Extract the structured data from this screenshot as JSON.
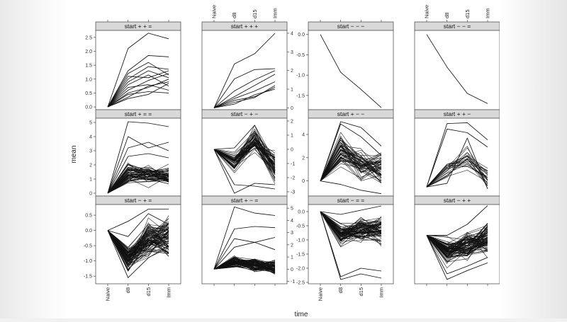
{
  "figure": {
    "xlabel": "time",
    "ylabel": "mean",
    "x_ticks": [
      "Naive",
      "d8",
      "d15",
      "Imm"
    ]
  },
  "chart_data": [
    {
      "type": "line",
      "title": "start + + =",
      "ylim": [
        -0.1,
        2.75
      ],
      "yticks": [
        0.0,
        0.5,
        1.0,
        1.5,
        2.0,
        2.5
      ],
      "x": [
        "Naive",
        "d8",
        "d15",
        "Imm"
      ],
      "series": [
        {
          "values": [
            0,
            2.1,
            2.65,
            2.45
          ]
        },
        {
          "values": [
            0,
            1.3,
            1.85,
            1.8
          ]
        },
        {
          "values": [
            0,
            1.2,
            1.6,
            1.15
          ]
        },
        {
          "values": [
            0,
            1.0,
            1.45,
            1.35
          ]
        },
        {
          "values": [
            0,
            0.9,
            1.3,
            1.05
          ]
        },
        {
          "values": [
            0,
            1.1,
            1.05,
            1.3
          ]
        },
        {
          "values": [
            0,
            0.8,
            1.15,
            0.75
          ]
        },
        {
          "values": [
            0,
            0.6,
            0.95,
            1.2
          ]
        },
        {
          "values": [
            0,
            0.7,
            0.8,
            0.6
          ]
        },
        {
          "values": [
            0,
            0.5,
            0.7,
            1.0
          ]
        },
        {
          "values": [
            0,
            0.45,
            0.55,
            0.5
          ]
        },
        {
          "values": [
            0,
            0.35,
            0.75,
            0.9
          ]
        },
        {
          "values": [
            0,
            0.3,
            0.45,
            0.85
          ]
        }
      ]
    },
    {
      "type": "line",
      "title": "start + + +",
      "ylim": [
        -0.1,
        4.15
      ],
      "yticks": [
        0,
        1,
        2,
        3,
        4
      ],
      "x": [
        "Naive",
        "d8",
        "d15",
        "Imm"
      ],
      "series": [
        {
          "values": [
            0,
            2.35,
            2.9,
            4.0
          ]
        },
        {
          "values": [
            0,
            1.55,
            2.05,
            2.1
          ]
        },
        {
          "values": [
            0,
            0.9,
            1.5,
            2.0
          ]
        },
        {
          "values": [
            0,
            0.6,
            1.2,
            1.8
          ]
        },
        {
          "values": [
            0,
            0.5,
            0.9,
            1.4
          ]
        },
        {
          "values": [
            0,
            0.4,
            0.6,
            1.1
          ]
        },
        {
          "values": [
            0,
            0.3,
            0.55,
            1.2
          ]
        },
        {
          "values": [
            0,
            0.2,
            0.7,
            1.0
          ]
        }
      ]
    },
    {
      "type": "line",
      "title": "start − − −",
      "ylim": [
        -1.85,
        0.1
      ],
      "yticks": [
        0.0,
        -0.5,
        -1.0,
        -1.5
      ],
      "x": [
        "Naive",
        "d8",
        "d15",
        "Imm"
      ],
      "series": [
        {
          "values": [
            0,
            -0.93,
            -1.35,
            -1.8
          ]
        }
      ]
    },
    {
      "type": "line",
      "title": "start − − =",
      "ylim": [
        -1.85,
        0.1
      ],
      "yticks": [
        0.0,
        -0.5,
        -1.0,
        -1.5
      ],
      "x": [
        "Naive",
        "d8",
        "d15",
        "Imm"
      ],
      "series": [
        {
          "values": [
            0,
            -0.8,
            -1.45,
            -1.7
          ]
        }
      ]
    },
    {
      "type": "line",
      "title": "start + = =",
      "ylim": [
        -0.2,
        5.3
      ],
      "yticks": [
        0,
        1,
        2,
        3,
        4,
        5
      ],
      "x": [
        "Naive",
        "d8",
        "d15",
        "Imm"
      ],
      "dense": {
        "count": 60,
        "d8": [
          0.4,
          2.4
        ],
        "d15": [
          0.3,
          2.3
        ],
        "Imm": [
          0.2,
          2.1
        ],
        "seed": 11
      },
      "series": [
        {
          "values": [
            0,
            5.05,
            4.95,
            4.7
          ]
        },
        {
          "values": [
            0,
            4.0,
            3.2,
            3.6
          ]
        },
        {
          "values": [
            0,
            3.2,
            3.6,
            3.0
          ]
        },
        {
          "values": [
            0,
            2.6,
            2.8,
            2.5
          ]
        }
      ]
    },
    {
      "type": "line",
      "title": "start − + −",
      "ylim": [
        -3.3,
        2.2
      ],
      "yticks": [
        2,
        1,
        0,
        -1,
        -2,
        -3
      ],
      "x": [
        "Naive",
        "d8",
        "d15",
        "Imm"
      ],
      "dense": {
        "count": 55,
        "d8": [
          -1.8,
          0.2
        ],
        "d15": [
          -0.6,
          1.8
        ],
        "Imm": [
          -3.0,
          0.5
        ],
        "seed": 23
      },
      "series": [
        {
          "values": [
            0,
            -3.1,
            -2.4,
            -2.5
          ]
        },
        {
          "values": [
            0,
            -2.5,
            -2.6,
            -2.8
          ]
        },
        {
          "values": [
            0,
            0.1,
            1.7,
            -1.5
          ]
        }
      ]
    },
    {
      "type": "line",
      "title": "start + − −",
      "ylim": [
        -1.3,
        5.4
      ],
      "yticks": [
        0,
        2,
        4
      ],
      "x": [
        "Naive",
        "d8",
        "d15",
        "Imm"
      ],
      "dense": {
        "count": 55,
        "d8": [
          0.3,
          4.8
        ],
        "d15": [
          -0.5,
          3.6
        ],
        "Imm": [
          -1.0,
          2.9
        ],
        "seed": 37
      },
      "series": [
        {
          "values": [
            0,
            5.1,
            4.6,
            3.0
          ]
        },
        {
          "values": [
            0,
            4.9,
            3.8,
            2.2
          ]
        },
        {
          "values": [
            0,
            -0.3,
            -0.8,
            -1.1
          ]
        }
      ]
    },
    {
      "type": "line",
      "title": "start + + −",
      "ylim": [
        -0.5,
        3.8
      ],
      "yticks": [
        0,
        1,
        2,
        3
      ],
      "x": [
        "Naive",
        "d8",
        "d15",
        "Imm"
      ],
      "dense": {
        "count": 22,
        "d8": [
          0.2,
          1.6
        ],
        "d15": [
          0.5,
          2.6
        ],
        "Imm": [
          -0.3,
          1.4
        ],
        "seed": 51
      },
      "series": [
        {
          "values": [
            0,
            3.5,
            3.55,
            2.6
          ]
        },
        {
          "values": [
            0,
            3.2,
            3.0,
            2.2
          ]
        },
        {
          "values": [
            0,
            0.2,
            2.7,
            -0.1
          ]
        }
      ]
    },
    {
      "type": "line",
      "title": "start − + =",
      "ylim": [
        -1.75,
        0.85
      ],
      "yticks": [
        0.5,
        0.0,
        -0.5,
        -1.0,
        -1.5
      ],
      "x": [
        "Naive",
        "d8",
        "d15",
        "Imm"
      ],
      "dense": {
        "count": 90,
        "d8": [
          -1.5,
          -0.3
        ],
        "d15": [
          -1.1,
          0.5
        ],
        "Imm": [
          -1.2,
          0.7
        ],
        "seed": 67
      },
      "series": [
        {
          "values": [
            0,
            -1.55,
            -0.9,
            -0.5
          ]
        },
        {
          "values": [
            0,
            0.3,
            0.7,
            0.7
          ]
        },
        {
          "values": [
            0,
            -0.2,
            0.55,
            0.2
          ]
        }
      ]
    },
    {
      "type": "line",
      "title": "start + − =",
      "ylim": [
        -1.2,
        5.3
      ],
      "yticks": [
        5,
        4,
        3,
        2,
        1,
        0,
        -1
      ],
      "x": [
        "Naive",
        "d8",
        "d15",
        "Imm"
      ],
      "dense": {
        "count": 85,
        "d8": [
          -0.1,
          1.3
        ],
        "d15": [
          -0.4,
          1.1
        ],
        "Imm": [
          -0.8,
          1.0
        ],
        "seed": 79
      },
      "series": [
        {
          "values": [
            0,
            5.1,
            4.6,
            4.4
          ]
        },
        {
          "values": [
            0,
            3.3,
            3.5,
            3.4
          ]
        },
        {
          "values": [
            0,
            2.5,
            2.2,
            2.6
          ]
        },
        {
          "values": [
            0,
            1.8,
            2.2,
            1.6
          ]
        }
      ]
    },
    {
      "type": "line",
      "title": "start − = =",
      "ylim": [
        -2.55,
        0.25
      ],
      "yticks": [
        0.0,
        -0.5,
        -1.0,
        -1.5,
        -2.0,
        -2.5
      ],
      "x": [
        "Naive",
        "d8",
        "d15",
        "Imm"
      ],
      "dense": {
        "count": 80,
        "d8": [
          -1.3,
          -0.3
        ],
        "d15": [
          -1.3,
          0.0
        ],
        "Imm": [
          -1.3,
          0.1
        ],
        "seed": 83
      },
      "series": [
        {
          "values": [
            0,
            -2.4,
            -2.2,
            -2.35
          ]
        },
        {
          "values": [
            0,
            -2.3,
            -2.0,
            -2.1
          ]
        },
        {
          "values": [
            0,
            -0.1,
            0.05,
            0.2
          ]
        }
      ]
    },
    {
      "type": "line",
      "title": "start − + +",
      "ylim": [
        -4.4,
        2.8
      ],
      "yticks": [
        2,
        0,
        -2,
        -4
      ],
      "x": [
        "Naive",
        "d8",
        "d15",
        "Imm"
      ],
      "dense": {
        "count": 85,
        "d8": [
          -3.0,
          0.0
        ],
        "d15": [
          -2.6,
          0.6
        ],
        "Imm": [
          -2.4,
          2.0
        ],
        "seed": 97
      },
      "series": [
        {
          "values": [
            0,
            -4.0,
            -3.2,
            -2.5
          ]
        },
        {
          "values": [
            0,
            0.0,
            1.0,
            2.7
          ]
        },
        {
          "values": [
            0,
            -3.5,
            -2.8,
            -2.0
          ]
        }
      ]
    }
  ]
}
